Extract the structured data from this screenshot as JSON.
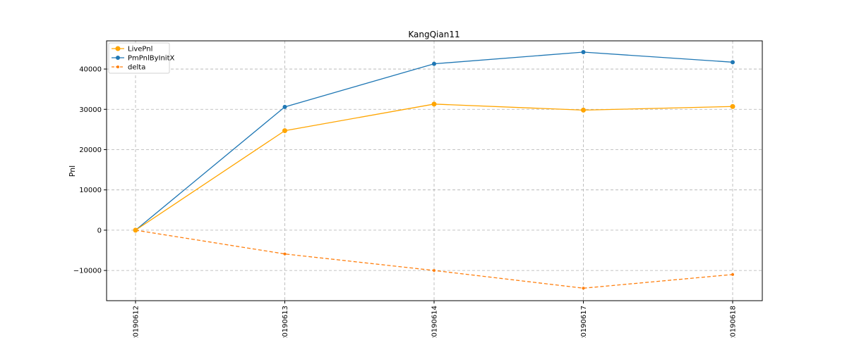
{
  "chart_data": {
    "type": "line",
    "title": "KangQian11",
    "xlabel": "",
    "ylabel": "Pnl",
    "categories": [
      "20190612",
      "20190613",
      "20190614",
      "20190617",
      "20190618"
    ],
    "ylim": [
      -17500,
      47000
    ],
    "yticks": [
      -10000,
      0,
      10000,
      20000,
      30000,
      40000
    ],
    "ytick_labels": [
      "−10000",
      "0",
      "10000",
      "20000",
      "30000",
      "40000"
    ],
    "grid": true,
    "legend_position": "top-left",
    "series": [
      {
        "name": "LivePnl",
        "values": [
          0,
          24700,
          31300,
          29800,
          30700
        ],
        "color": "#ffa500",
        "linestyle": "solid",
        "marker_size": 3.5
      },
      {
        "name": "PmPnlByInitX",
        "values": [
          0,
          30600,
          41300,
          44200,
          41700
        ],
        "color": "#1f77b4",
        "linestyle": "solid",
        "marker_size": 3
      },
      {
        "name": "delta",
        "values": [
          0,
          -5900,
          -10000,
          -14400,
          -11000
        ],
        "color": "#ff7f0e",
        "linestyle": "dashed",
        "marker_size": 2
      }
    ]
  }
}
